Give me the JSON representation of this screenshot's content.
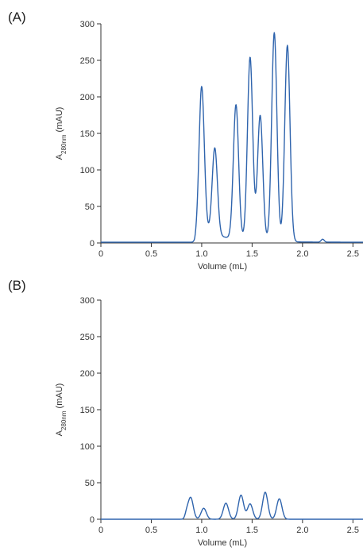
{
  "panels": [
    {
      "label": "(A)"
    },
    {
      "label": "(B)"
    }
  ],
  "trace_color": "#2f64ad",
  "chart_data": [
    {
      "type": "line",
      "title": "",
      "xlabel": "Volume (mL)",
      "ylabel_main": "A",
      "ylabel_sub": "280nm",
      "ylabel_unit": "(mAU)",
      "xlim": [
        0,
        2.6
      ],
      "ylim": [
        0,
        300
      ],
      "xticks": [
        "0",
        "0.5",
        "1.0",
        "1.5",
        "2.0",
        "2.5"
      ],
      "xtick_values": [
        0,
        0.5,
        1.0,
        1.5,
        2.0,
        2.5
      ],
      "yticks": [
        "0",
        "50",
        "100",
        "150",
        "200",
        "250",
        "300"
      ],
      "ytick_values": [
        0,
        50,
        100,
        150,
        200,
        250,
        300
      ],
      "baseline": 1,
      "shoulder": {
        "start": 0.93,
        "end": 0.99,
        "height": 18
      },
      "peaks": [
        {
          "x": 1.0,
          "y": 197
        },
        {
          "x": 1.13,
          "y": 120
        },
        {
          "x": 1.34,
          "y": 185
        },
        {
          "x": 1.48,
          "y": 252
        },
        {
          "x": 1.58,
          "y": 173
        },
        {
          "x": 1.72,
          "y": 287
        },
        {
          "x": 1.85,
          "y": 270
        },
        {
          "x": 2.2,
          "y": 5
        }
      ]
    },
    {
      "type": "line",
      "title": "",
      "xlabel": "Volume (mL)",
      "ylabel_main": "A",
      "ylabel_sub": "280nm",
      "ylabel_unit": "(mAU)",
      "xlim": [
        0,
        2.6
      ],
      "ylim": [
        0,
        300
      ],
      "xticks": [
        "0",
        "0.5",
        "1.0",
        "1.5",
        "2.0",
        "2.5"
      ],
      "xtick_values": [
        0,
        0.5,
        1.0,
        1.5,
        2.0,
        2.5
      ],
      "yticks": [
        "0",
        "50",
        "100",
        "150",
        "200",
        "250",
        "300"
      ],
      "ytick_values": [
        0,
        50,
        100,
        150,
        200,
        250,
        300
      ],
      "baseline": 0,
      "shoulder": null,
      "peaks": [
        {
          "x": 0.85,
          "y": 6
        },
        {
          "x": 0.89,
          "y": 30
        },
        {
          "x": 1.02,
          "y": 15
        },
        {
          "x": 1.24,
          "y": 22
        },
        {
          "x": 1.39,
          "y": 33
        },
        {
          "x": 1.48,
          "y": 21
        },
        {
          "x": 1.63,
          "y": 37
        },
        {
          "x": 1.77,
          "y": 28
        }
      ]
    }
  ]
}
